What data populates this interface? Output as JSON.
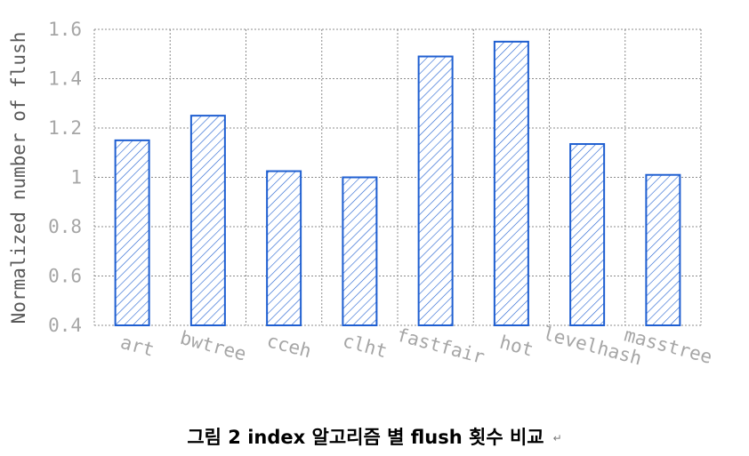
{
  "chart_data": {
    "type": "bar",
    "categories": [
      "art",
      "bwtree",
      "cceh",
      "clht",
      "fastfair",
      "hot",
      "levelhash",
      "masstree"
    ],
    "values": [
      1.15,
      1.25,
      1.025,
      1.0,
      1.49,
      1.55,
      1.135,
      1.01
    ],
    "ylabel": "Normalized number of flush",
    "ylim": [
      0.4,
      1.6
    ],
    "yticks": [
      "0.4",
      "0.6",
      "0.8",
      "1",
      "1.2",
      "1.4",
      "1.6"
    ],
    "grid": true,
    "bar_color": "#1f5fd1",
    "pattern": "diagonal-hatch"
  },
  "caption": {
    "text": "그림 2 index 알고리즘 별 flush 횟수 비교",
    "mark": "↵"
  }
}
